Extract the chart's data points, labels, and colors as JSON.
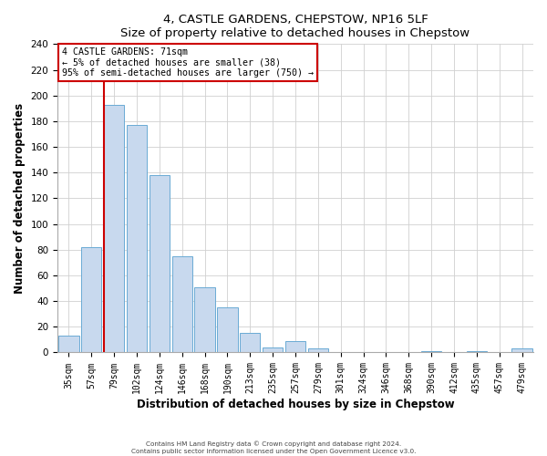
{
  "title": "4, CASTLE GARDENS, CHEPSTOW, NP16 5LF",
  "subtitle": "Size of property relative to detached houses in Chepstow",
  "xlabel": "Distribution of detached houses by size in Chepstow",
  "ylabel": "Number of detached properties",
  "bar_labels": [
    "35sqm",
    "57sqm",
    "79sqm",
    "102sqm",
    "124sqm",
    "146sqm",
    "168sqm",
    "190sqm",
    "213sqm",
    "235sqm",
    "257sqm",
    "279sqm",
    "301sqm",
    "324sqm",
    "346sqm",
    "368sqm",
    "390sqm",
    "412sqm",
    "435sqm",
    "457sqm",
    "479sqm"
  ],
  "bar_heights": [
    13,
    82,
    193,
    177,
    138,
    75,
    51,
    35,
    15,
    4,
    9,
    3,
    0,
    0,
    0,
    0,
    1,
    0,
    1,
    0,
    3
  ],
  "bar_color": "#c8d9ee",
  "bar_edge_color": "#6aaad4",
  "ylim": [
    0,
    240
  ],
  "yticks": [
    0,
    20,
    40,
    60,
    80,
    100,
    120,
    140,
    160,
    180,
    200,
    220,
    240
  ],
  "property_line_color": "#cc0000",
  "annotation_title": "4 CASTLE GARDENS: 71sqm",
  "annotation_line1": "← 5% of detached houses are smaller (38)",
  "annotation_line2": "95% of semi-detached houses are larger (750) →",
  "annotation_box_color": "#cc0000",
  "footer_line1": "Contains HM Land Registry data © Crown copyright and database right 2024.",
  "footer_line2": "Contains public sector information licensed under the Open Government Licence v3.0.",
  "background_color": "#ffffff",
  "grid_color": "#d0d0d0"
}
